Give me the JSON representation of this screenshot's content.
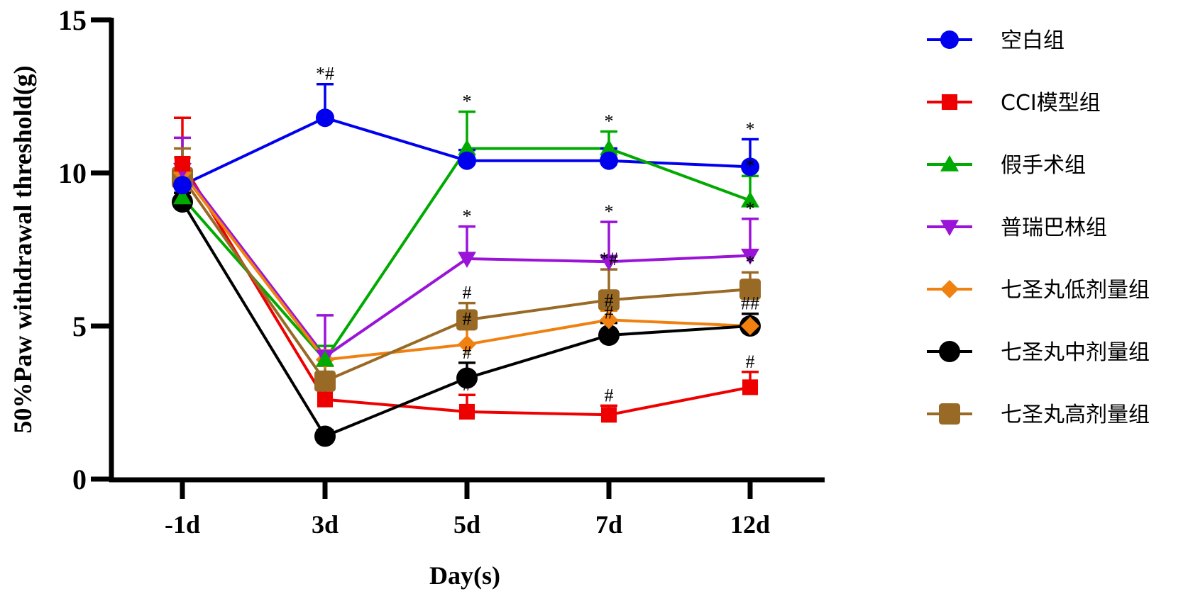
{
  "chart_data": {
    "type": "line",
    "title": "",
    "xlabel": "Day(s)",
    "ylabel": "50%Paw withdrawal threshold(g)",
    "categories": [
      "-1d",
      "3d",
      "5d",
      "7d",
      "12d"
    ],
    "ylim": [
      0,
      15
    ],
    "yticks": [
      0,
      5,
      10,
      15
    ],
    "grid": false,
    "legend_position": "right",
    "series": [
      {
        "name": "空白组",
        "color": "#0000ee",
        "marker": "circle",
        "values": [
          9.6,
          11.8,
          10.4,
          10.4,
          10.2
        ],
        "errors": [
          0.9,
          1.1,
          0.35,
          0.4,
          0.9
        ],
        "annotations": [
          "",
          "*#",
          "",
          "",
          "*"
        ]
      },
      {
        "name": "CCI模型组",
        "color": "#ee0000",
        "marker": "square",
        "values": [
          10.3,
          2.6,
          2.2,
          2.1,
          3.0
        ],
        "errors": [
          1.5,
          0.3,
          0.55,
          0.3,
          0.5
        ],
        "annotations": [
          "",
          "",
          "#",
          "#",
          "#"
        ]
      },
      {
        "name": "假手术组",
        "color": "#00aa00",
        "marker": "triangle-up",
        "values": [
          9.2,
          3.9,
          10.8,
          10.8,
          9.1
        ],
        "errors": [
          0.3,
          0.45,
          1.2,
          0.55,
          0.8
        ],
        "annotations": [
          "",
          "",
          "*",
          "*",
          "*"
        ]
      },
      {
        "name": "普瑞巴林组",
        "color": "#9a14d8",
        "marker": "triangle-down",
        "values": [
          10.1,
          4.0,
          7.2,
          7.1,
          7.3
        ],
        "errors": [
          1.05,
          1.35,
          1.05,
          1.3,
          1.2
        ],
        "annotations": [
          "",
          "",
          "*",
          "*",
          "*"
        ]
      },
      {
        "name": "七圣丸低剂量组",
        "color": "#f08010",
        "marker": "diamond",
        "values": [
          10.0,
          3.9,
          4.4,
          5.2,
          5.0
        ],
        "errors": [
          0.5,
          0.3,
          0.5,
          0.3,
          0.4
        ],
        "annotations": [
          "",
          "",
          "#",
          "#",
          "##"
        ]
      },
      {
        "name": "七圣丸中剂量组",
        "color": "#000000",
        "marker": "circle",
        "values": [
          9.05,
          1.4,
          3.3,
          4.7,
          5.0
        ],
        "errors": [
          0.3,
          0.2,
          0.5,
          0.4,
          0.4
        ],
        "annotations": [
          "",
          "",
          "#",
          "#",
          ""
        ]
      },
      {
        "name": "七圣丸高剂量组",
        "color": "#986a25",
        "marker": "rounded-square",
        "values": [
          9.85,
          3.2,
          5.2,
          5.85,
          6.2
        ],
        "errors": [
          0.95,
          0.5,
          0.55,
          1.0,
          0.55
        ],
        "annotations": [
          "",
          "",
          "#",
          "*#",
          "*"
        ]
      }
    ]
  }
}
